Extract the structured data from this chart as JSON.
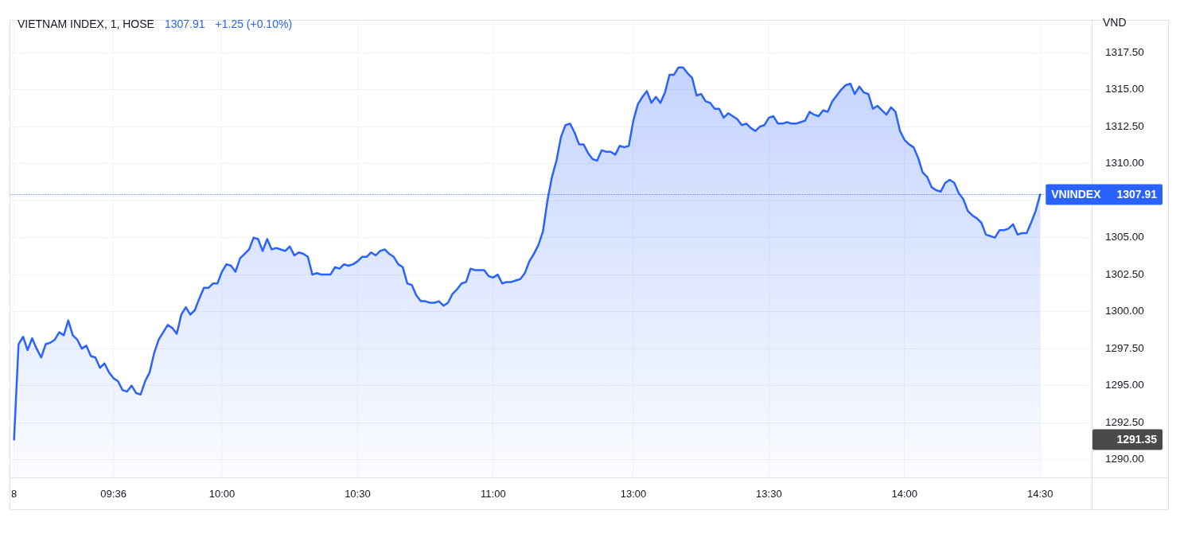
{
  "chart_data": {
    "type": "area",
    "title": "VIETNAM INDEX, 1, HOSE",
    "annotations": [
      "1307.91",
      "+1.25 (+0.10%)",
      "1291.35"
    ],
    "ylabel": "VND",
    "categories": [
      "8",
      null,
      null,
      null,
      null,
      null,
      null,
      null,
      null,
      null,
      null,
      null,
      null,
      null,
      null,
      null,
      null,
      null,
      null,
      null,
      null,
      null,
      "09:36",
      null,
      null,
      null,
      null,
      null,
      null,
      null,
      null,
      null,
      null,
      null,
      null,
      null,
      null,
      null,
      null,
      null,
      null,
      null,
      null,
      null,
      null,
      null,
      "10:00",
      null,
      null,
      null,
      null,
      null,
      null,
      null,
      null,
      null,
      null,
      null,
      null,
      null,
      null,
      null,
      null,
      null,
      null,
      null,
      null,
      null,
      null,
      null,
      null,
      null,
      null,
      null,
      null,
      null,
      "10:30",
      null,
      null,
      null,
      null,
      null,
      null,
      null,
      null,
      null,
      null,
      null,
      null,
      null,
      null,
      null,
      null,
      null,
      null,
      null,
      null,
      null,
      null,
      null,
      null,
      null,
      null,
      null,
      null,
      null,
      "11:00",
      null,
      null,
      null,
      null,
      null,
      null,
      null,
      null,
      null,
      null,
      null,
      null,
      null,
      null,
      null,
      null,
      null,
      null,
      null,
      null,
      null,
      null,
      null,
      null,
      null,
      null,
      null,
      null,
      null,
      null,
      "13:00",
      null,
      null,
      null,
      null,
      null,
      null,
      null,
      null,
      null,
      null,
      null,
      null,
      null,
      null,
      null,
      null,
      null,
      null,
      null,
      null,
      null,
      null,
      null,
      null,
      null,
      null,
      null,
      null,
      null,
      "13:30",
      null,
      null,
      null,
      null,
      null,
      null,
      null,
      null,
      null,
      null,
      null,
      null,
      null,
      null,
      null,
      null,
      null,
      null,
      null,
      null,
      null,
      null,
      null,
      null,
      null,
      null,
      null,
      null,
      null,
      "14:00",
      null,
      null,
      null,
      null,
      null,
      null,
      null,
      null,
      null,
      null,
      null,
      null,
      null,
      null,
      null,
      null,
      null,
      null,
      null,
      null,
      null,
      null,
      null,
      null,
      null,
      null,
      null,
      null,
      null,
      "14:30"
    ],
    "series": [
      {
        "color": "#2962ff",
        "values": [
          1291.35,
          1297.8,
          1298.3,
          1297.4,
          1298.2,
          1297.5,
          1296.9,
          1297.8,
          1297.9,
          1298.1,
          1298.6,
          1298.4,
          1299.4,
          1298.4,
          1298.1,
          1297.5,
          1297.7,
          1297.0,
          1296.9,
          1296.2,
          1296.5,
          1295.9,
          1295.5,
          1295.3,
          1294.7,
          1294.6,
          1295.0,
          1294.5,
          1294.4,
          1295.3,
          1295.9,
          1297.2,
          1298.1,
          1298.6,
          1299.1,
          1298.9,
          1298.5,
          1299.8,
          1300.3,
          1299.8,
          1300.1,
          1300.9,
          1301.6,
          1301.6,
          1301.9,
          1301.9,
          1302.7,
          1303.2,
          1303.1,
          1302.7,
          1303.6,
          1303.9,
          1304.2,
          1305.0,
          1304.9,
          1304.1,
          1304.9,
          1304.2,
          1304.3,
          1304.2,
          1304.1,
          1304.4,
          1303.8,
          1304.0,
          1303.9,
          1303.7,
          1302.5,
          1302.6,
          1302.5,
          1302.5,
          1302.5,
          1303.0,
          1302.9,
          1303.2,
          1303.1,
          1303.2,
          1303.4,
          1303.7,
          1303.7,
          1304.0,
          1303.8,
          1304.1,
          1304.2,
          1303.9,
          1303.7,
          1303.2,
          1303.0,
          1301.9,
          1301.8,
          1301.1,
          1300.7,
          1300.7,
          1300.6,
          1300.6,
          1300.7,
          1300.4,
          1300.6,
          1301.2,
          1301.5,
          1301.9,
          1302.0,
          1302.9,
          1302.8,
          1302.8,
          1302.8,
          1302.4,
          1302.3,
          1302.5,
          1301.9,
          1302.0,
          1302.0,
          1302.1,
          1302.2,
          1302.6,
          1303.4,
          1303.9,
          1304.5,
          1305.4,
          1307.5,
          1309.1,
          1310.2,
          1311.8,
          1312.6,
          1312.7,
          1312.1,
          1311.3,
          1311.3,
          1310.7,
          1310.3,
          1310.2,
          1310.9,
          1310.8,
          1310.8,
          1310.6,
          1311.2,
          1311.1,
          1311.2,
          1312.9,
          1314.0,
          1314.5,
          1314.9,
          1314.1,
          1314.5,
          1314.1,
          1314.8,
          1316.0,
          1316.0,
          1316.5,
          1316.5,
          1316.1,
          1315.8,
          1314.6,
          1314.7,
          1314.2,
          1314.1,
          1313.7,
          1313.7,
          1313.1,
          1313.4,
          1313.2,
          1313.0,
          1312.6,
          1312.7,
          1312.4,
          1312.2,
          1312.5,
          1312.6,
          1313.1,
          1313.2,
          1312.7,
          1312.7,
          1312.8,
          1312.7,
          1312.7,
          1312.8,
          1312.9,
          1313.5,
          1313.3,
          1313.2,
          1313.6,
          1313.5,
          1314.2,
          1314.6,
          1315.0,
          1315.3,
          1315.4,
          1314.7,
          1315.2,
          1314.8,
          1314.7,
          1313.7,
          1313.9,
          1313.6,
          1313.3,
          1313.8,
          1313.5,
          1312.2,
          1311.6,
          1311.3,
          1311.1,
          1310.4,
          1309.4,
          1309.1,
          1308.4,
          1308.2,
          1308.1,
          1308.7,
          1308.9,
          1308.7,
          1308.0,
          1307.6,
          1306.8,
          1306.5,
          1306.3,
          1306.0,
          1305.2,
          1305.1,
          1305.0,
          1305.5,
          1305.5,
          1305.6,
          1305.9,
          1305.2,
          1305.3,
          1305.3,
          1306.0,
          1306.8,
          1307.91
        ]
      }
    ],
    "ylim": [
      1288.8,
      1319.7
    ],
    "yticks": [
      {
        "value": 1290,
        "label": "1290.00"
      },
      {
        "value": 1292.5,
        "label": "1292.50"
      },
      {
        "value": 1295,
        "label": "1295.00"
      },
      {
        "value": 1297.5,
        "label": "1297.50"
      },
      {
        "value": 1300,
        "label": "1300.00"
      },
      {
        "value": 1302.5,
        "label": "1302.50"
      },
      {
        "value": 1305,
        "label": "1305.00"
      },
      {
        "value": 1307.5,
        "label": null
      },
      {
        "value": 1310,
        "label": "1310.00"
      },
      {
        "value": 1312.5,
        "label": "1312.50"
      },
      {
        "value": 1315,
        "label": "1315.00"
      },
      {
        "value": 1317.5,
        "label": "1317.50"
      }
    ],
    "grid": true,
    "ref_lines": [
      {
        "axis": "y",
        "value": 1307.91,
        "label": "VNINDEX",
        "color": "#2962ff",
        "line_style": "dotted"
      }
    ]
  }
}
